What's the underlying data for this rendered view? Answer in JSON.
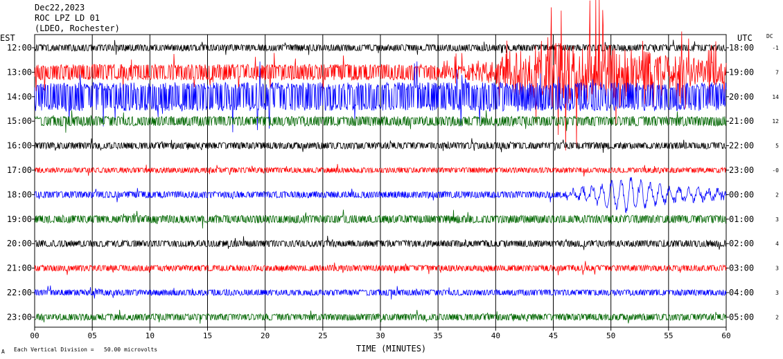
{
  "header": {
    "date": "Dec22,2023",
    "station": "ROC LPZ LD 01",
    "network": "(LDEO, Rochester)"
  },
  "left_tz": "EST",
  "right_tz": "UTC",
  "dc_header": "DC",
  "footer": {
    "scale_note": "Each Vertical Division =   50.00 microvolts",
    "mark": "A"
  },
  "colors": {
    "trace_cycle": [
      "#000000",
      "#ff0000",
      "#0000ff",
      "#006600"
    ],
    "grid": "#000000"
  },
  "chart_data": {
    "type": "line",
    "title": "ROC LPZ LD 01",
    "xlabel": "TIME (MINUTES)",
    "ylabel": "",
    "xlim": [
      0,
      60
    ],
    "x_ticks": [
      "00",
      "05",
      "10",
      "15",
      "20",
      "25",
      "30",
      "35",
      "40",
      "45",
      "50",
      "55",
      "60"
    ],
    "grid": true,
    "rows": [
      {
        "est": "12:00",
        "utc": "18:00",
        "dc": "-1",
        "amp": 1.0
      },
      {
        "est": "13:00",
        "utc": "19:00",
        "dc": "7",
        "amp": 2.5
      },
      {
        "est": "14:00",
        "utc": "20:00",
        "dc": "14",
        "amp": 4.5
      },
      {
        "est": "15:00",
        "utc": "21:00",
        "dc": "12",
        "amp": 1.5
      },
      {
        "est": "16:00",
        "utc": "22:00",
        "dc": "5",
        "amp": 1.0
      },
      {
        "est": "17:00",
        "utc": "23:00",
        "dc": "-0",
        "amp": 0.8
      },
      {
        "est": "18:00",
        "utc": "00:00",
        "dc": "2",
        "amp": 1.0
      },
      {
        "est": "19:00",
        "utc": "01:00",
        "dc": "3",
        "amp": 1.2
      },
      {
        "est": "20:00",
        "utc": "02:00",
        "dc": "4",
        "amp": 1.0
      },
      {
        "est": "21:00",
        "utc": "03:00",
        "dc": "3",
        "amp": 0.9
      },
      {
        "est": "22:00",
        "utc": "04:00",
        "dc": "3",
        "amp": 0.9
      },
      {
        "est": "23:00",
        "utc": "05:00",
        "dc": "2",
        "amp": 1.0
      }
    ],
    "events": [
      {
        "row": "13:00",
        "start_min": 35,
        "end_min": 60,
        "peak_min": 47,
        "note": "large-amplitude burst"
      },
      {
        "row": "18:00",
        "start_min": 46,
        "end_min": 60,
        "peak_min": 51,
        "note": "long-period wave train"
      }
    ]
  }
}
